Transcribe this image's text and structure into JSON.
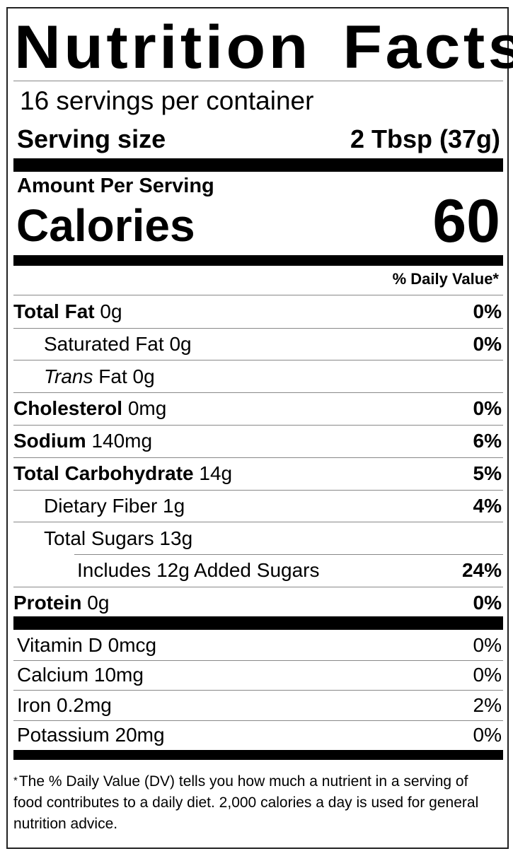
{
  "title": "Nutrition Facts",
  "servings_per_container": "16 servings per container",
  "serving_size": {
    "label": "Serving size",
    "value": "2 Tbsp (37g)"
  },
  "amount_per_serving": "Amount Per Serving",
  "calories": {
    "label": "Calories",
    "value": "60"
  },
  "daily_value_header": "% Daily Value*",
  "nutrients": [
    {
      "name": "Total Fat",
      "amount": "0g",
      "dv": "0%",
      "bold": true,
      "indent": 0
    },
    {
      "name": "Saturated Fat",
      "amount": "0g",
      "dv": "0%",
      "bold": false,
      "indent": 1
    },
    {
      "name": "Trans",
      "name_suffix": "Fat",
      "amount": "0g",
      "dv": "",
      "bold": false,
      "indent": 1,
      "italic_prefix": true
    },
    {
      "name": "Cholesterol",
      "amount": "0mg",
      "dv": "0%",
      "bold": true,
      "indent": 0
    },
    {
      "name": "Sodium",
      "amount": "140mg",
      "dv": "6%",
      "bold": true,
      "indent": 0
    },
    {
      "name": "Total Carbohydrate",
      "amount": "14g",
      "dv": "5%",
      "bold": true,
      "indent": 0
    },
    {
      "name": "Dietary Fiber",
      "amount": "1g",
      "dv": "4%",
      "bold": false,
      "indent": 1
    },
    {
      "name": "Total Sugars",
      "amount": "13g",
      "dv": "",
      "bold": false,
      "indent": 1
    },
    {
      "name": "Includes 12g Added Sugars",
      "amount": "",
      "dv": "24%",
      "bold": false,
      "indent": 2
    },
    {
      "name": "Protein",
      "amount": "0g",
      "dv": "0%",
      "bold": true,
      "indent": 0
    }
  ],
  "vitamins": [
    {
      "label": "Vitamin D 0mcg",
      "dv": "0%"
    },
    {
      "label": "Calcium 10mg",
      "dv": "0%"
    },
    {
      "label": "Iron 0.2mg",
      "dv": "2%"
    },
    {
      "label": "Potassium 20mg",
      "dv": "0%"
    }
  ],
  "footnote": {
    "marker": "*",
    "text": "The % Daily Value (DV) tells you how much a nutrient in a serving of food contributes to a daily diet. 2,000 calories a day is used for general nutrition advice."
  }
}
